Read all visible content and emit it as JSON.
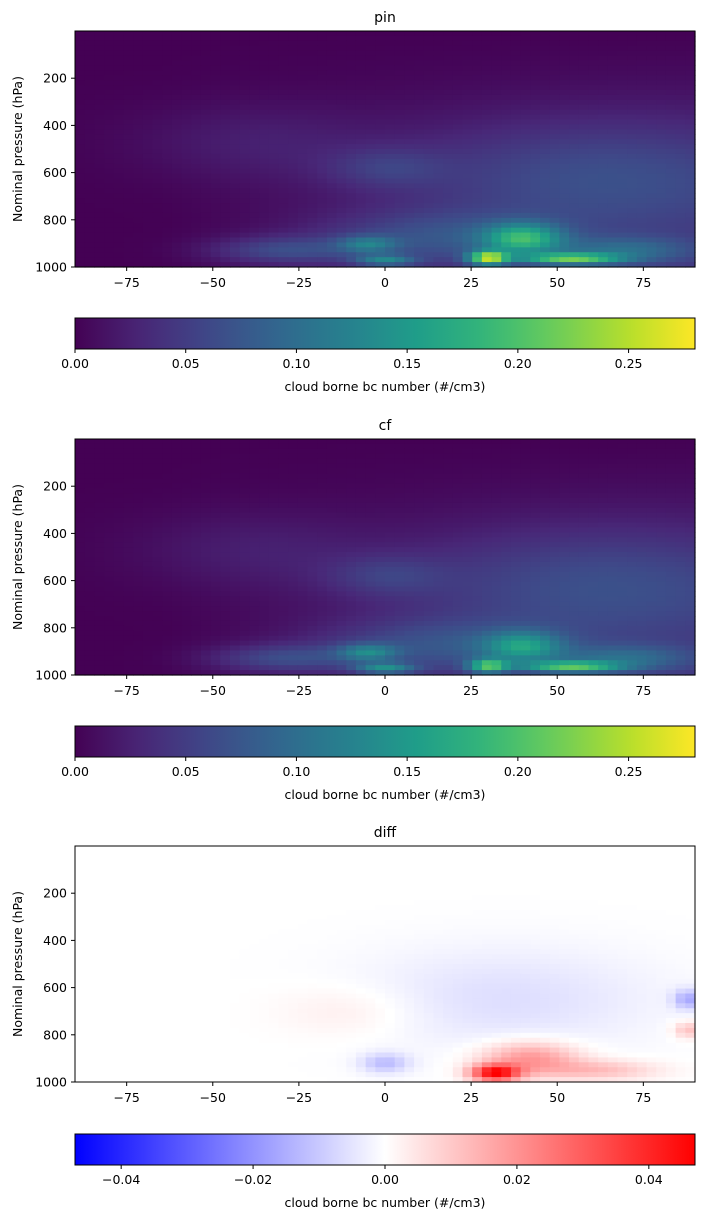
{
  "chart_data": [
    {
      "type": "heatmap",
      "title": "pin",
      "xlabel": "",
      "ylabel": "Nominal pressure (hPa)",
      "x_range": [
        -90,
        90
      ],
      "y_range": [
        1000,
        0
      ],
      "x_ticks": [
        -75,
        -50,
        -25,
        0,
        25,
        50,
        75
      ],
      "y_ticks": [
        200,
        400,
        600,
        800,
        1000
      ],
      "colormap": "viridis",
      "colorbar": {
        "label": "cloud borne bc number (#/cm3)",
        "range": [
          0,
          0.28
        ],
        "ticks": [
          "0.00",
          "0.05",
          "0.10",
          "0.15",
          "0.20",
          "0.25"
        ]
      },
      "features": [
        {
          "lat": 30,
          "p": 960,
          "value": 0.28
        },
        {
          "lat": 40,
          "p": 880,
          "value": 0.2
        },
        {
          "lat": 55,
          "p": 960,
          "value": 0.24
        },
        {
          "lat": 0,
          "p": 970,
          "value": 0.14
        },
        {
          "lat": -5,
          "p": 900,
          "value": 0.12
        }
      ]
    },
    {
      "type": "heatmap",
      "title": "cf",
      "xlabel": "",
      "ylabel": "Nominal pressure (hPa)",
      "x_range": [
        -90,
        90
      ],
      "y_range": [
        1000,
        0
      ],
      "x_ticks": [
        -75,
        -50,
        -25,
        0,
        25,
        50,
        75
      ],
      "y_ticks": [
        200,
        400,
        600,
        800,
        1000
      ],
      "colormap": "viridis",
      "colorbar": {
        "label": "cloud borne bc number (#/cm3)",
        "range": [
          0,
          0.28
        ],
        "ticks": [
          "0.00",
          "0.05",
          "0.10",
          "0.15",
          "0.20",
          "0.25"
        ]
      },
      "features": [
        {
          "lat": 28,
          "p": 960,
          "value": 0.22
        },
        {
          "lat": 40,
          "p": 880,
          "value": 0.17
        },
        {
          "lat": 52,
          "p": 960,
          "value": 0.22
        },
        {
          "lat": 0,
          "p": 970,
          "value": 0.15
        },
        {
          "lat": -5,
          "p": 900,
          "value": 0.13
        }
      ]
    },
    {
      "type": "heatmap",
      "title": "diff",
      "xlabel": "",
      "ylabel": "Nominal pressure (hPa)",
      "x_range": [
        -90,
        90
      ],
      "y_range": [
        1000,
        0
      ],
      "x_ticks": [
        -75,
        -50,
        -25,
        0,
        25,
        50,
        75
      ],
      "y_ticks": [
        200,
        400,
        600,
        800,
        1000
      ],
      "colormap": "bwr",
      "colorbar": {
        "label": "cloud borne bc number (#/cm3)",
        "range": [
          -0.047,
          0.047
        ],
        "ticks": [
          "−0.04",
          "−0.02",
          "0.00",
          "0.02",
          "0.04"
        ]
      },
      "features": [
        {
          "lat": 32,
          "p": 960,
          "value": 0.045
        },
        {
          "lat": 40,
          "p": 900,
          "value": 0.02
        },
        {
          "lat": 60,
          "p": 950,
          "value": 0.01
        },
        {
          "lat": 0,
          "p": 920,
          "value": -0.012
        },
        {
          "lat": 88,
          "p": 650,
          "value": -0.015
        },
        {
          "lat": 88,
          "p": 780,
          "value": 0.012
        }
      ]
    }
  ]
}
